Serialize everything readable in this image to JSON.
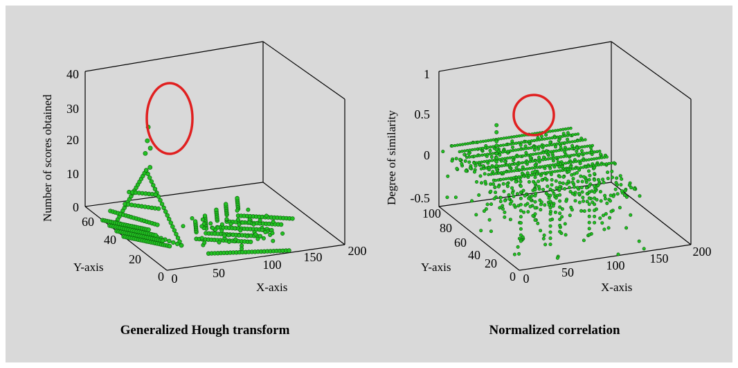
{
  "chart_data": [
    {
      "type": "scatter",
      "projection": "3d",
      "title": "Generalized Hough transform",
      "xlabel": "X-axis",
      "ylabel": "Y-axis",
      "zlabel": "Number of scores obtained",
      "xlim": [
        0,
        200
      ],
      "ylim": [
        0,
        70
      ],
      "zlim": [
        0,
        40
      ],
      "xticks": [
        "0",
        "50",
        "100",
        "150",
        "200"
      ],
      "yticks": [
        "0",
        "20",
        "40",
        "60"
      ],
      "zticks": [
        "0",
        "10",
        "20",
        "30",
        "40"
      ],
      "marker_color": "#22c022",
      "highlight_color": "#e02020",
      "highlight": "circled peak near x≈25, y≈35, z≈26–32",
      "peak_points": [
        [
          25,
          35,
          32
        ],
        [
          24,
          35,
          28
        ],
        [
          26,
          34,
          26
        ],
        [
          23,
          36,
          24
        ],
        [
          27,
          35,
          20
        ]
      ]
    },
    {
      "type": "scatter",
      "projection": "3d",
      "title": "Normalized correlation",
      "xlabel": "X-axis",
      "ylabel": "Y-axis",
      "zlabel": "Degree of  similarity",
      "xlim": [
        0,
        200
      ],
      "ylim": [
        0,
        100
      ],
      "zlim": [
        -0.6,
        1
      ],
      "xticks": [
        "0",
        "50",
        "100",
        "150",
        "200"
      ],
      "yticks": [
        "0",
        "20",
        "40",
        "60",
        "80",
        "100"
      ],
      "zticks": [
        "-0.5",
        "0",
        "0.5",
        "1"
      ],
      "marker_color": "#22c022",
      "highlight_color": "#e02020",
      "highlight": "circled peak near x≈25, y≈55, z≈0.45",
      "peak_points": [
        [
          25,
          55,
          0.45
        ],
        [
          25,
          55,
          0.38
        ],
        [
          25,
          55,
          0.3
        ],
        [
          26,
          54,
          0.2
        ]
      ]
    }
  ]
}
